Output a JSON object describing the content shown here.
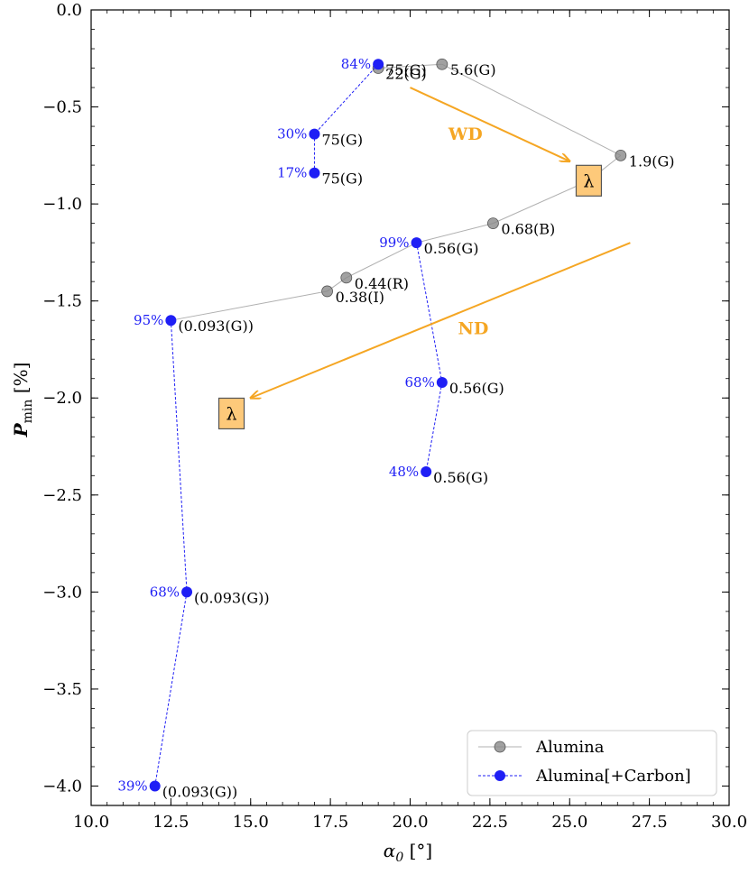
{
  "chart_data": {
    "type": "scatter",
    "xlabel": "α₀ [°]",
    "xlabel_main": "α",
    "xlabel_sub": "0",
    "xlabel_unit": " [°]",
    "ylabel": "P_min [%]",
    "ylabel_main": "P",
    "ylabel_sub": "min",
    "ylabel_unit": " [%]",
    "xlim": [
      10.0,
      30.0
    ],
    "ylim": [
      -4.1,
      0.0
    ],
    "xticks": [
      10.0,
      12.5,
      15.0,
      17.5,
      20.0,
      22.5,
      25.0,
      27.5,
      30.0
    ],
    "xtick_labels": [
      "10.0",
      "12.5",
      "15.0",
      "17.5",
      "20.0",
      "22.5",
      "25.0",
      "27.5",
      "30.0"
    ],
    "yticks": [
      0.0,
      -0.5,
      -1.0,
      -1.5,
      -2.0,
      -2.5,
      -3.0,
      -3.5,
      -4.0
    ],
    "ytick_labels": [
      "0.0",
      "−0.5",
      "−1.0",
      "−1.5",
      "−2.0",
      "−2.5",
      "−3.0",
      "−3.5",
      "−4.0"
    ],
    "legend_position": "bottom-right",
    "series": [
      {
        "name": "Alumina",
        "color": "#8a8a8a",
        "line_color": "#b0b0b0",
        "linestyle": "solid",
        "points": [
          {
            "x": 21.0,
            "y": -0.28,
            "label": "5.6(G)"
          },
          {
            "x": 26.6,
            "y": -0.75,
            "label": "1.9(G)"
          }
        ],
        "segments": [
          [
            19.0,
            -0.3,
            21.0,
            -0.28
          ],
          [
            21.0,
            -0.28,
            26.6,
            -0.75
          ],
          [
            26.6,
            -0.75,
            25.6,
            -0.88
          ]
        ],
        "extra_markers": [
          {
            "x": 19.0,
            "y": -0.3,
            "label": "22(G)"
          }
        ]
      },
      {
        "name": "Alumina",
        "color": "#8a8a8a",
        "line_color": "#b0b0b0",
        "linestyle": "solid",
        "points": [
          {
            "x": 22.6,
            "y": -1.1,
            "label": "0.68(B)"
          },
          {
            "x": 18.0,
            "y": -1.38,
            "label": "0.44(R)"
          },
          {
            "x": 17.4,
            "y": -1.45,
            "label": "0.38(I)"
          }
        ],
        "segments": [
          [
            25.6,
            -0.88,
            22.6,
            -1.1
          ],
          [
            22.6,
            -1.1,
            20.2,
            -1.2
          ],
          [
            20.2,
            -1.2,
            18.0,
            -1.38
          ],
          [
            18.0,
            -1.38,
            17.4,
            -1.45
          ],
          [
            17.4,
            -1.45,
            12.5,
            -1.6
          ]
        ]
      }
    ],
    "carbon_series_name": "Alumina[+Carbon]",
    "carbon_color": "#1f1ff5",
    "carbon_groups": [
      {
        "points": [
          {
            "x": 19.0,
            "y": -0.28,
            "pct": "84%",
            "label": "75(G)"
          },
          {
            "x": 17.0,
            "y": -0.64,
            "pct": "30%",
            "label": "75(G)"
          },
          {
            "x": 17.0,
            "y": -0.84,
            "pct": "17%",
            "label": "75(G)"
          }
        ]
      },
      {
        "points": [
          {
            "x": 20.2,
            "y": -1.2,
            "pct": "99%",
            "label": "0.56(G)"
          },
          {
            "x": 21.0,
            "y": -1.92,
            "pct": "68%",
            "label": "0.56(G)"
          },
          {
            "x": 20.5,
            "y": -2.38,
            "pct": "48%",
            "label": "0.56(G)"
          }
        ]
      },
      {
        "points": [
          {
            "x": 12.5,
            "y": -1.6,
            "pct": "95%",
            "label": "(0.093(G))"
          },
          {
            "x": 13.0,
            "y": -3.0,
            "pct": "68%",
            "label": "(0.093(G))"
          },
          {
            "x": 12.0,
            "y": -4.0,
            "pct": "39%",
            "label": "(0.093(G))"
          }
        ]
      }
    ],
    "annotations": {
      "wd_label": "WD",
      "nd_label": "ND",
      "lambda_symbol": "λ",
      "arrow_color": "#f5a623",
      "box_fill": "#fdc97a",
      "wd_arrow": {
        "from": [
          20.0,
          -0.4
        ],
        "to": [
          25.0,
          -0.78
        ]
      },
      "nd_arrow": {
        "from": [
          26.9,
          -1.2
        ],
        "to": [
          15.0,
          -2.0
        ]
      },
      "wd_text_at": [
        21.2,
        -0.67
      ],
      "nd_text_at": [
        21.5,
        -1.67
      ],
      "lambda_box_1": [
        25.6,
        -0.88
      ],
      "lambda_box_2": [
        14.4,
        -2.08
      ]
    },
    "legend": [
      "Alumina",
      "Alumina[+Carbon]"
    ]
  }
}
